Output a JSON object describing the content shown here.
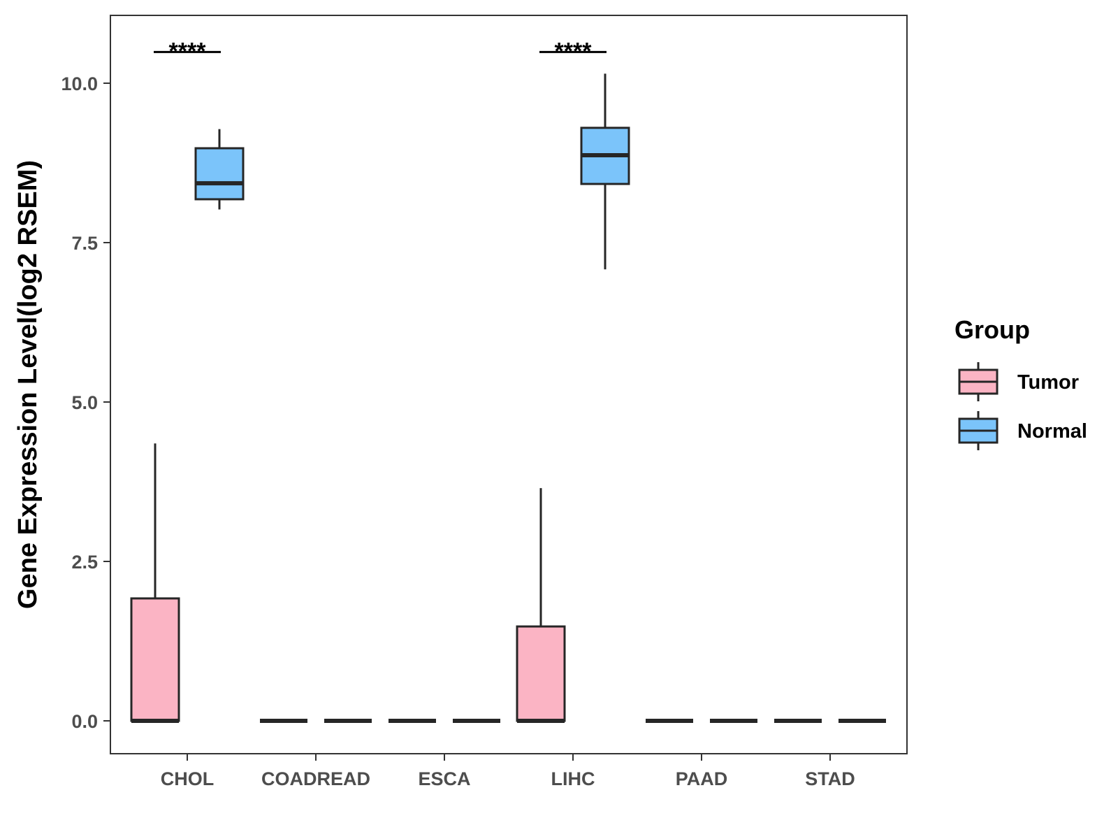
{
  "chart_data": {
    "type": "boxplot",
    "title": "",
    "xlabel": "",
    "ylabel": "Gene Expression Level(log2 RSEM)",
    "ylim": [
      -0.5,
      11.0
    ],
    "yticks": [
      0.0,
      2.5,
      5.0,
      7.5,
      10.0
    ],
    "ytick_labels": [
      "0.0",
      "2.5",
      "5.0",
      "7.5",
      "10.0"
    ],
    "categories": [
      "CHOL",
      "COADREAD",
      "ESCA",
      "LIHC",
      "PAAD",
      "STAD"
    ],
    "legend": {
      "title": "Group",
      "position": "right"
    },
    "series": [
      {
        "name": "Tumor",
        "color": "#FBB4C4",
        "boxes": [
          {
            "category": "CHOL",
            "min": 0.0,
            "q1": 0.0,
            "median": 0.0,
            "q3": 1.92,
            "max": 4.35
          },
          {
            "category": "COADREAD",
            "min": 0.0,
            "q1": 0.0,
            "median": 0.0,
            "q3": 0.0,
            "max": 0.0
          },
          {
            "category": "ESCA",
            "min": 0.0,
            "q1": 0.0,
            "median": 0.0,
            "q3": 0.0,
            "max": 0.0
          },
          {
            "category": "LIHC",
            "min": 0.0,
            "q1": 0.0,
            "median": 0.0,
            "q3": 1.48,
            "max": 3.65
          },
          {
            "category": "PAAD",
            "min": 0.0,
            "q1": 0.0,
            "median": 0.0,
            "q3": 0.0,
            "max": 0.0
          },
          {
            "category": "STAD",
            "min": 0.0,
            "q1": 0.0,
            "median": 0.0,
            "q3": 0.0,
            "max": 0.0
          }
        ]
      },
      {
        "name": "Normal",
        "color": "#7BC4FA",
        "boxes": [
          {
            "category": "CHOL",
            "min": 8.02,
            "q1": 8.18,
            "median": 8.43,
            "q3": 8.98,
            "max": 9.28
          },
          {
            "category": "COADREAD",
            "min": 0.0,
            "q1": 0.0,
            "median": 0.0,
            "q3": 0.0,
            "max": 0.0
          },
          {
            "category": "ESCA",
            "min": 0.0,
            "q1": 0.0,
            "median": 0.0,
            "q3": 0.0,
            "max": 0.0
          },
          {
            "category": "LIHC",
            "min": 7.08,
            "q1": 8.42,
            "median": 8.87,
            "q3": 9.3,
            "max": 10.15
          },
          {
            "category": "PAAD",
            "min": 0.0,
            "q1": 0.0,
            "median": 0.0,
            "q3": 0.0,
            "max": 0.0
          },
          {
            "category": "STAD",
            "min": 0.0,
            "q1": 0.0,
            "median": 0.0,
            "q3": 0.0,
            "max": 0.0
          }
        ]
      }
    ],
    "annotations": [
      {
        "category": "CHOL",
        "label": "****",
        "y": 10.5
      },
      {
        "category": "LIHC",
        "label": "****",
        "y": 10.5
      }
    ]
  }
}
